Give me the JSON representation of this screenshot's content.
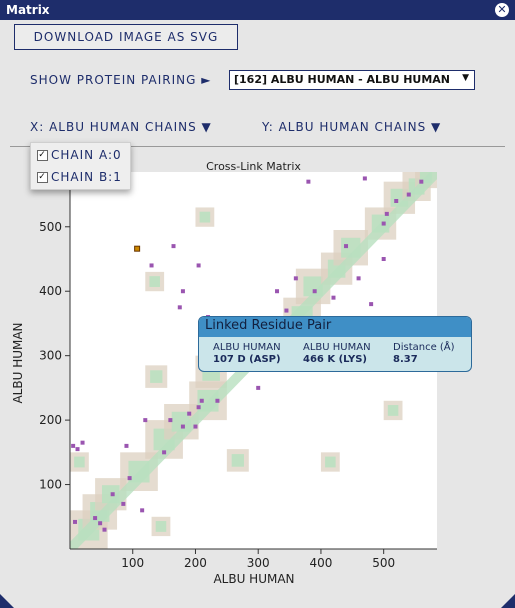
{
  "window": {
    "title": "Matrix",
    "close_glyph": "✕"
  },
  "toolbar": {
    "download_label": "DOWNLOAD IMAGE AS SVG"
  },
  "pairing": {
    "label": "SHOW PROTEIN PAIRING ►",
    "selected": "[162] ALBU HUMAN - ALBU HUMAN",
    "caret": "▼"
  },
  "axes_menu": {
    "x_label": "X: ALBU HUMAN CHAINS ▼",
    "y_label": "Y: ALBU HUMAN CHAINS ▼"
  },
  "chains": [
    {
      "label": "CHAIN A:0",
      "checked": true
    },
    {
      "label": "CHAIN B:1",
      "checked": true
    }
  ],
  "tooltip": {
    "title": "Linked Residue Pair",
    "col1": {
      "header": "ALBU HUMAN",
      "value": "107 D (ASP)"
    },
    "col2": {
      "header": "ALBU HUMAN",
      "value": "466 K (LYS)"
    },
    "col3": {
      "header": "Distance (Å)",
      "value": "8.37"
    }
  },
  "chart_data": {
    "type": "heatmap",
    "title": "Cross-Link Matrix",
    "xlabel": "ALBU HUMAN",
    "ylabel": "ALBU HUMAN",
    "xlim": [
      0,
      585
    ],
    "ylim": [
      0,
      585
    ],
    "xticks": [
      100,
      200,
      300,
      400,
      500
    ],
    "yticks": [
      100,
      200,
      300,
      400,
      500
    ],
    "colors": {
      "distance_map": "#dcd0c0",
      "near_contacts": "#b9e0c0",
      "cross_link": "#9a55b0",
      "selected_link": "#cc8800"
    },
    "contact_blocks": [
      [
        0,
        0,
        60
      ],
      [
        20,
        30,
        55
      ],
      [
        40,
        60,
        50
      ],
      [
        80,
        90,
        60
      ],
      [
        120,
        140,
        60
      ],
      [
        150,
        170,
        55
      ],
      [
        190,
        200,
        60
      ],
      [
        200,
        250,
        50
      ],
      [
        240,
        280,
        55
      ],
      [
        300,
        300,
        50
      ],
      [
        340,
        330,
        60
      ],
      [
        360,
        380,
        55
      ],
      [
        400,
        410,
        50
      ],
      [
        420,
        440,
        55
      ],
      [
        470,
        480,
        50
      ],
      [
        500,
        520,
        50
      ],
      [
        530,
        540,
        45
      ],
      [
        550,
        560,
        35
      ],
      [
        0,
        120,
        30
      ],
      [
        130,
        20,
        30
      ],
      [
        250,
        120,
        35
      ],
      [
        120,
        250,
        35
      ],
      [
        400,
        120,
        30
      ],
      [
        120,
        400,
        30
      ],
      [
        500,
        200,
        30
      ],
      [
        200,
        500,
        30
      ]
    ],
    "cross_links": [
      [
        5,
        160
      ],
      [
        12,
        155
      ],
      [
        20,
        165
      ],
      [
        8,
        42
      ],
      [
        40,
        48
      ],
      [
        48,
        40
      ],
      [
        55,
        30
      ],
      [
        68,
        85
      ],
      [
        85,
        70
      ],
      [
        95,
        110
      ],
      [
        150,
        150
      ],
      [
        160,
        200
      ],
      [
        180,
        190
      ],
      [
        190,
        210
      ],
      [
        200,
        190
      ],
      [
        205,
        220
      ],
      [
        210,
        230
      ],
      [
        130,
        440
      ],
      [
        175,
        375
      ],
      [
        180,
        400
      ],
      [
        205,
        440
      ],
      [
        220,
        360
      ],
      [
        250,
        290
      ],
      [
        300,
        250
      ],
      [
        285,
        330
      ],
      [
        310,
        290
      ],
      [
        330,
        400
      ],
      [
        345,
        370
      ],
      [
        360,
        420
      ],
      [
        370,
        350
      ],
      [
        390,
        400
      ],
      [
        420,
        390
      ],
      [
        430,
        300
      ],
      [
        440,
        470
      ],
      [
        460,
        420
      ],
      [
        480,
        380
      ],
      [
        500,
        450
      ],
      [
        505,
        520
      ],
      [
        520,
        540
      ],
      [
        540,
        550
      ],
      [
        560,
        570
      ],
      [
        470,
        575
      ],
      [
        380,
        570
      ],
      [
        500,
        505
      ],
      [
        90,
        160
      ],
      [
        120,
        200
      ],
      [
        235,
        230
      ],
      [
        115,
        60
      ],
      [
        165,
        470
      ]
    ],
    "selected_link": [
      107,
      466
    ]
  }
}
